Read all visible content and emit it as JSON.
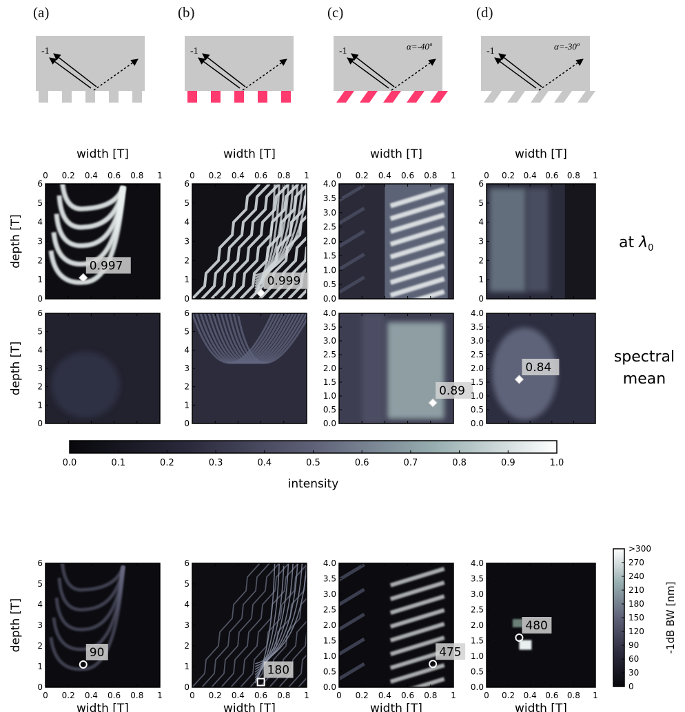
{
  "figure": {
    "panel_letters": [
      "(a)",
      "(b)",
      "(c)",
      "(d)"
    ],
    "schematics": [
      {
        "order_label": "-1",
        "angle_label": "",
        "grating": "binary",
        "grating_color": "#c8c8c8"
      },
      {
        "order_label": "-1",
        "angle_label": "",
        "grating": "binary",
        "grating_color": "#ff3a6e"
      },
      {
        "order_label": "-1",
        "angle_label": "α=-40º",
        "grating": "slanted",
        "grating_color": "#ff3a6e"
      },
      {
        "order_label": "-1",
        "angle_label": "α=-30º",
        "grating": "slanted",
        "grating_color": "#c8c8c8"
      }
    ],
    "axis_labels": {
      "x": "width [T]",
      "y": "depth [T]"
    },
    "x_ticks": [
      "0",
      "0.2",
      "0.4",
      "0.6",
      "0.8",
      "1"
    ],
    "y_ticks_int": [
      "0",
      "1",
      "2",
      "3",
      "4",
      "5",
      "6"
    ],
    "y_ticks_half": [
      "0.0",
      "0.5",
      "1.0",
      "1.5",
      "2.0",
      "2.5",
      "3.0",
      "3.5",
      "4.0"
    ],
    "row_labels": {
      "at": "at ",
      "lambda": "λ",
      "sub": "0",
      "spectral": "spectral",
      "mean": "mean"
    }
  },
  "chart_data": [
    {
      "type": "heatmap",
      "title": "",
      "row": "at λ0",
      "panel": "(a)",
      "xlabel": "width [T]",
      "ylabel": "depth [T]",
      "xlim": [
        0,
        1
      ],
      "ylim": [
        0,
        6
      ],
      "annotation": "0.997",
      "annotation_point": {
        "x": 0.33,
        "y": 1.1
      }
    },
    {
      "type": "heatmap",
      "title": "",
      "row": "at λ0",
      "panel": "(b)",
      "xlabel": "width [T]",
      "ylabel": "",
      "xlim": [
        0,
        1
      ],
      "ylim": [
        0,
        6
      ],
      "annotation": "0.999",
      "annotation_point": {
        "x": 0.6,
        "y": 0.3
      }
    },
    {
      "type": "heatmap",
      "title": "",
      "row": "at λ0",
      "panel": "(c)",
      "xlabel": "width [T]",
      "ylabel": "",
      "xlim": [
        0,
        1
      ],
      "ylim": [
        0,
        4
      ],
      "annotation": "",
      "annotation_point": null
    },
    {
      "type": "heatmap",
      "title": "",
      "row": "at λ0",
      "panel": "(d)",
      "xlabel": "width [T]",
      "ylabel": "",
      "xlim": [
        0,
        1
      ],
      "ylim": [
        0,
        6
      ],
      "annotation": "",
      "annotation_point": null
    },
    {
      "type": "heatmap",
      "title": "",
      "row": "spectral mean",
      "panel": "(a)",
      "xlabel": "",
      "ylabel": "depth [T]",
      "xlim": [
        0,
        1
      ],
      "ylim": [
        0,
        6
      ],
      "annotation": "",
      "annotation_point": null
    },
    {
      "type": "heatmap",
      "title": "",
      "row": "spectral mean",
      "panel": "(b)",
      "xlabel": "",
      "ylabel": "",
      "xlim": [
        0,
        1
      ],
      "ylim": [
        0,
        6
      ],
      "annotation": "",
      "annotation_point": null
    },
    {
      "type": "heatmap",
      "title": "",
      "row": "spectral mean",
      "panel": "(c)",
      "xlabel": "",
      "ylabel": "",
      "xlim": [
        0,
        1
      ],
      "ylim": [
        0,
        4
      ],
      "annotation": "0.89",
      "annotation_point": {
        "x": 0.82,
        "y": 0.75
      }
    },
    {
      "type": "heatmap",
      "title": "",
      "row": "spectral mean",
      "panel": "(d)",
      "xlabel": "",
      "ylabel": "",
      "xlim": [
        0,
        1
      ],
      "ylim": [
        0,
        4
      ],
      "annotation": "0.84",
      "annotation_point": {
        "x": 0.3,
        "y": 1.6
      }
    },
    {
      "type": "heatmap",
      "title": "",
      "row": "-1dB BW",
      "panel": "(a)",
      "xlabel": "width [T]",
      "ylabel": "depth [T]",
      "xlim": [
        0,
        1
      ],
      "ylim": [
        0,
        6
      ],
      "annotation": "90",
      "annotation_point": {
        "x": 0.33,
        "y": 1.1
      }
    },
    {
      "type": "heatmap",
      "title": "",
      "row": "-1dB BW",
      "panel": "(b)",
      "xlabel": "width [T]",
      "ylabel": "",
      "xlim": [
        0,
        1
      ],
      "ylim": [
        0,
        6
      ],
      "annotation": "180",
      "annotation_point": {
        "x": 0.6,
        "y": 0.25
      }
    },
    {
      "type": "heatmap",
      "title": "",
      "row": "-1dB BW",
      "panel": "(c)",
      "xlabel": "width [T]",
      "ylabel": "",
      "xlim": [
        0,
        1
      ],
      "ylim": [
        0,
        4
      ],
      "annotation": "475",
      "annotation_point": {
        "x": 0.82,
        "y": 0.75
      }
    },
    {
      "type": "heatmap",
      "title": "",
      "row": "-1dB BW",
      "panel": "(d)",
      "xlabel": "width [T]",
      "ylabel": "",
      "xlim": [
        0,
        1
      ],
      "ylim": [
        0,
        4
      ],
      "annotation": "480",
      "annotation_point": {
        "x": 0.3,
        "y": 1.6
      }
    }
  ],
  "colorbar_intensity": {
    "label": "intensity",
    "ticks": [
      "0.0",
      "0.1",
      "0.2",
      "0.3",
      "0.4",
      "0.5",
      "0.6",
      "0.7",
      "0.8",
      "0.9",
      "1.0"
    ],
    "range": [
      0,
      1
    ]
  },
  "colorbar_bw": {
    "label": "-1dB BW [nm]",
    "ticks": [
      "0",
      "30",
      "60",
      "90",
      "120",
      "150",
      "180",
      "210",
      "240",
      "270",
      ">300"
    ],
    "range": [
      0,
      300
    ]
  }
}
